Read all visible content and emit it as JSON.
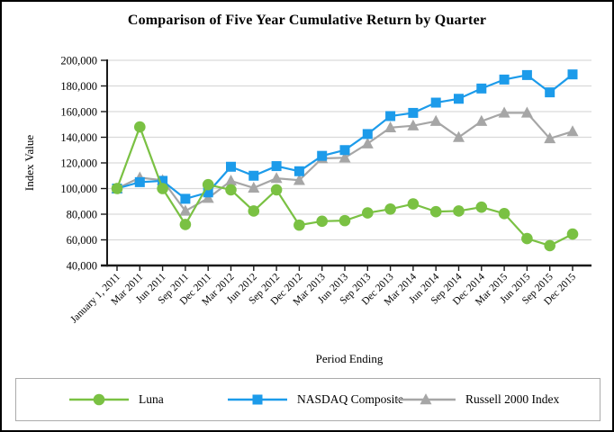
{
  "page": {
    "background": "#ffffff",
    "border_color": "#000000"
  },
  "chart_data": {
    "type": "line",
    "title": "Comparison of Five Year Cumulative Return by Quarter",
    "xlabel": "Period Ending",
    "ylabel": "Index Value",
    "ylim": [
      40000,
      200000
    ],
    "ytick_step": 20000,
    "ytick_labels": [
      "40,000",
      "60,000",
      "80,000",
      "100,000",
      "120,000",
      "140,000",
      "160,000",
      "180,000",
      "200,000"
    ],
    "grid": true,
    "grid_color": "#d9d9d9",
    "axis_color": "#1a1a1a",
    "legend_position": "bottom-boxed",
    "categories": [
      "January 1, 2011",
      "Mar 2011",
      "Jun 2011",
      "Sep 2011",
      "Dec 2011",
      "Mar 2012",
      "Jun 2012",
      "Sep 2012",
      "Dec 2012",
      "Mar 2013",
      "Jun 2013",
      "Sep 2013",
      "Dec 2013",
      "Mar 2014",
      "Jun 2014",
      "Sep 2014",
      "Dec 2014",
      "Mar 2015",
      "Jun 2015",
      "Sep 2015",
      "Dec 2015"
    ],
    "series": [
      {
        "name": "Luna",
        "marker": "circle",
        "color": "#7AC143",
        "values": [
          100000,
          148000,
          100000,
          72000,
          103000,
          99000,
          82500,
          99000,
          71500,
          74500,
          75000,
          81000,
          84000,
          88000,
          82000,
          82500,
          85500,
          80500,
          61000,
          55500,
          64500
        ]
      },
      {
        "name": "NASDAQ Composite",
        "marker": "square",
        "color": "#1C9BEA",
        "values": [
          100000,
          105000,
          106000,
          92000,
          97000,
          117000,
          110000,
          117500,
          113500,
          125500,
          130000,
          142500,
          156500,
          159000,
          167000,
          170000,
          178000,
          185000,
          188500,
          175000,
          189000
        ]
      },
      {
        "name": "Russell 2000 Index",
        "marker": "triangle",
        "color": "#A6A6A6",
        "values": [
          100000,
          108500,
          106500,
          82500,
          92500,
          106000,
          100500,
          108000,
          106500,
          123500,
          124000,
          135000,
          147500,
          149000,
          152500,
          140000,
          152500,
          159000,
          159000,
          139000,
          144500
        ]
      }
    ]
  }
}
